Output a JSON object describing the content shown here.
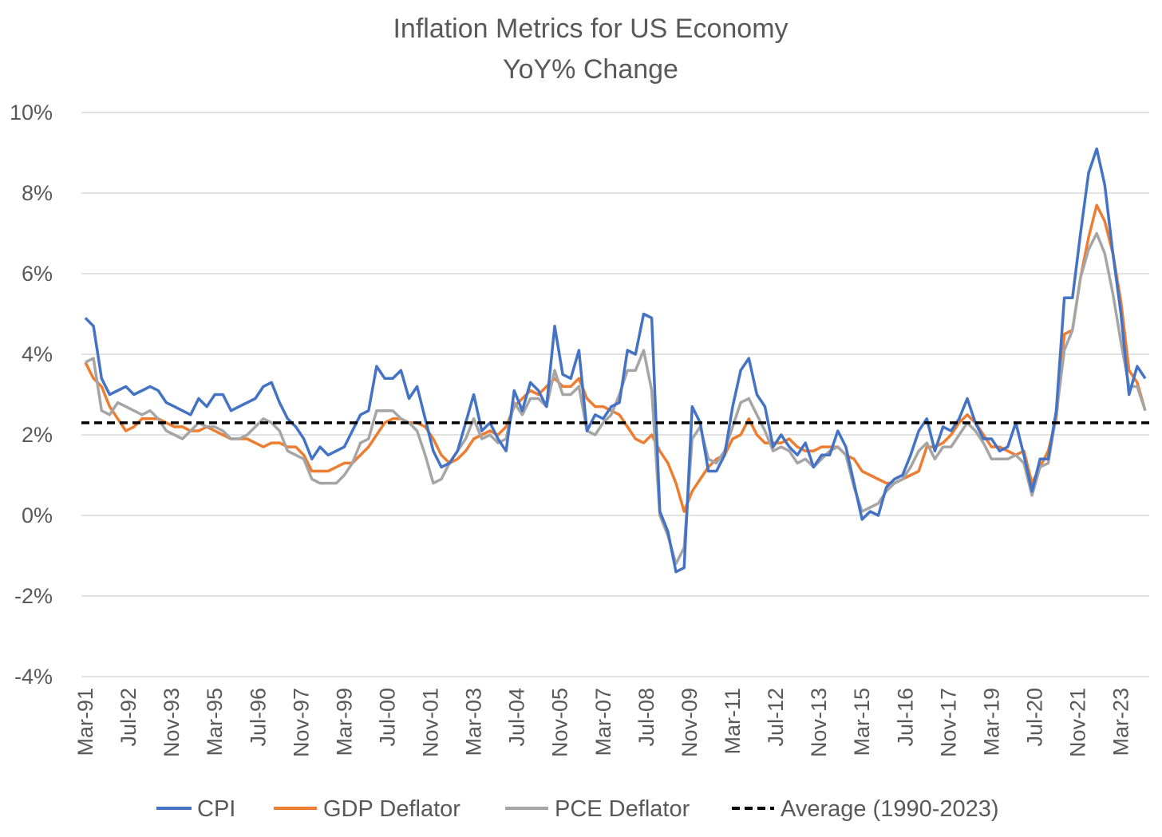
{
  "chart_data": {
    "type": "line",
    "title": "Inflation Metrics for US Economy",
    "subtitle": "YoY% Change",
    "xlabel": "",
    "ylabel": "",
    "ylim": [
      -4,
      10
    ],
    "y_ticks": [
      10,
      8,
      6,
      4,
      2,
      0,
      -2,
      -4
    ],
    "y_tick_labels": [
      "10%",
      "8%",
      "6%",
      "4%",
      "2%",
      "0%",
      "-2%",
      "-4%"
    ],
    "x_tick_labels": [
      "Mar-91",
      "Jul-92",
      "Nov-93",
      "Mar-95",
      "Jul-96",
      "Nov-97",
      "Mar-99",
      "Jul-00",
      "Nov-01",
      "Mar-03",
      "Jul-04",
      "Nov-05",
      "Mar-07",
      "Jul-08",
      "Nov-09",
      "Mar-11",
      "Jul-12",
      "Nov-13",
      "Mar-15",
      "Jul-16",
      "Nov-17",
      "Mar-19",
      "Jul-20",
      "Nov-21",
      "Mar-23"
    ],
    "grid": true,
    "legend": "bottom",
    "series": [
      {
        "name": "CPI",
        "color": "#4472C4",
        "x": [
          "1991-03",
          "1991-06",
          "1991-09",
          "1991-12",
          "1992-03",
          "1992-06",
          "1992-09",
          "1992-12",
          "1993-03",
          "1993-06",
          "1993-09",
          "1993-12",
          "1994-03",
          "1994-06",
          "1994-09",
          "1994-12",
          "1995-03",
          "1995-06",
          "1995-09",
          "1995-12",
          "1996-03",
          "1996-06",
          "1996-09",
          "1996-12",
          "1997-03",
          "1997-06",
          "1997-09",
          "1997-12",
          "1998-03",
          "1998-06",
          "1998-09",
          "1998-12",
          "1999-03",
          "1999-06",
          "1999-09",
          "1999-12",
          "2000-03",
          "2000-06",
          "2000-09",
          "2000-12",
          "2001-03",
          "2001-06",
          "2001-09",
          "2001-12",
          "2002-03",
          "2002-06",
          "2002-09",
          "2002-12",
          "2003-03",
          "2003-06",
          "2003-09",
          "2003-12",
          "2004-03",
          "2004-06",
          "2004-09",
          "2004-12",
          "2005-03",
          "2005-06",
          "2005-09",
          "2005-12",
          "2006-03",
          "2006-06",
          "2006-09",
          "2006-12",
          "2007-03",
          "2007-06",
          "2007-09",
          "2007-12",
          "2008-03",
          "2008-06",
          "2008-09",
          "2008-12",
          "2009-03",
          "2009-06",
          "2009-09",
          "2009-12",
          "2010-03",
          "2010-06",
          "2010-09",
          "2010-12",
          "2011-03",
          "2011-06",
          "2011-09",
          "2011-12",
          "2012-03",
          "2012-06",
          "2012-09",
          "2012-12",
          "2013-03",
          "2013-06",
          "2013-09",
          "2013-12",
          "2014-03",
          "2014-06",
          "2014-09",
          "2014-12",
          "2015-03",
          "2015-06",
          "2015-09",
          "2015-12",
          "2016-03",
          "2016-06",
          "2016-09",
          "2016-12",
          "2017-03",
          "2017-06",
          "2017-09",
          "2017-12",
          "2018-03",
          "2018-06",
          "2018-09",
          "2018-12",
          "2019-03",
          "2019-06",
          "2019-09",
          "2019-12",
          "2020-03",
          "2020-06",
          "2020-09",
          "2020-12",
          "2021-03",
          "2021-06",
          "2021-09",
          "2021-12",
          "2022-03",
          "2022-06",
          "2022-09",
          "2022-12",
          "2023-03",
          "2023-06",
          "2023-09",
          "2023-12"
        ],
        "values": [
          4.9,
          4.7,
          3.4,
          3.0,
          3.1,
          3.2,
          3.0,
          3.1,
          3.2,
          3.1,
          2.8,
          2.7,
          2.6,
          2.5,
          2.9,
          2.7,
          3.0,
          3.0,
          2.6,
          2.7,
          2.8,
          2.9,
          3.2,
          3.3,
          2.8,
          2.4,
          2.2,
          1.9,
          1.4,
          1.7,
          1.5,
          1.6,
          1.7,
          2.1,
          2.5,
          2.6,
          3.7,
          3.4,
          3.4,
          3.6,
          2.9,
          3.2,
          2.4,
          1.6,
          1.2,
          1.3,
          1.6,
          2.3,
          3.0,
          2.1,
          2.3,
          1.9,
          1.6,
          3.1,
          2.6,
          3.3,
          3.1,
          2.7,
          4.7,
          3.5,
          3.4,
          4.1,
          2.1,
          2.5,
          2.4,
          2.7,
          2.8,
          4.1,
          4.0,
          5.0,
          4.9,
          0.1,
          -0.4,
          -1.4,
          -1.3,
          2.7,
          2.3,
          1.1,
          1.1,
          1.5,
          2.7,
          3.6,
          3.9,
          3.0,
          2.7,
          1.7,
          2.0,
          1.7,
          1.5,
          1.8,
          1.2,
          1.5,
          1.5,
          2.1,
          1.7,
          0.8,
          -0.1,
          0.1,
          0.0,
          0.7,
          0.9,
          1.0,
          1.5,
          2.1,
          2.4,
          1.6,
          2.2,
          2.1,
          2.4,
          2.9,
          2.3,
          1.9,
          1.9,
          1.6,
          1.7,
          2.3,
          1.5,
          0.6,
          1.4,
          1.4,
          2.6,
          5.4,
          5.4,
          7.0,
          8.5,
          9.1,
          8.2,
          6.5,
          5.0,
          3.0,
          3.7,
          3.4
        ]
      },
      {
        "name": "GDP Deflator",
        "color": "#ED7D31",
        "x": [
          "1991-03",
          "1991-06",
          "1991-09",
          "1991-12",
          "1992-03",
          "1992-06",
          "1992-09",
          "1992-12",
          "1993-03",
          "1993-06",
          "1993-09",
          "1993-12",
          "1994-03",
          "1994-06",
          "1994-09",
          "1994-12",
          "1995-03",
          "1995-06",
          "1995-09",
          "1995-12",
          "1996-03",
          "1996-06",
          "1996-09",
          "1996-12",
          "1997-03",
          "1997-06",
          "1997-09",
          "1997-12",
          "1998-03",
          "1998-06",
          "1998-09",
          "1998-12",
          "1999-03",
          "1999-06",
          "1999-09",
          "1999-12",
          "2000-03",
          "2000-06",
          "2000-09",
          "2000-12",
          "2001-03",
          "2001-06",
          "2001-09",
          "2001-12",
          "2002-03",
          "2002-06",
          "2002-09",
          "2002-12",
          "2003-03",
          "2003-06",
          "2003-09",
          "2003-12",
          "2004-03",
          "2004-06",
          "2004-09",
          "2004-12",
          "2005-03",
          "2005-06",
          "2005-09",
          "2005-12",
          "2006-03",
          "2006-06",
          "2006-09",
          "2006-12",
          "2007-03",
          "2007-06",
          "2007-09",
          "2007-12",
          "2008-03",
          "2008-06",
          "2008-09",
          "2008-12",
          "2009-03",
          "2009-06",
          "2009-09",
          "2009-12",
          "2010-03",
          "2010-06",
          "2010-09",
          "2010-12",
          "2011-03",
          "2011-06",
          "2011-09",
          "2011-12",
          "2012-03",
          "2012-06",
          "2012-09",
          "2012-12",
          "2013-03",
          "2013-06",
          "2013-09",
          "2013-12",
          "2014-03",
          "2014-06",
          "2014-09",
          "2014-12",
          "2015-03",
          "2015-06",
          "2015-09",
          "2015-12",
          "2016-03",
          "2016-06",
          "2016-09",
          "2016-12",
          "2017-03",
          "2017-06",
          "2017-09",
          "2017-12",
          "2018-03",
          "2018-06",
          "2018-09",
          "2018-12",
          "2019-03",
          "2019-06",
          "2019-09",
          "2019-12",
          "2020-03",
          "2020-06",
          "2020-09",
          "2020-12",
          "2021-03",
          "2021-06",
          "2021-09",
          "2021-12",
          "2022-03",
          "2022-06",
          "2022-09",
          "2022-12",
          "2023-03",
          "2023-06",
          "2023-09",
          "2023-12"
        ],
        "values": [
          3.8,
          3.4,
          3.2,
          2.7,
          2.4,
          2.1,
          2.2,
          2.4,
          2.4,
          2.4,
          2.3,
          2.2,
          2.2,
          2.1,
          2.1,
          2.2,
          2.1,
          2.0,
          1.9,
          1.9,
          1.9,
          1.8,
          1.7,
          1.8,
          1.8,
          1.7,
          1.7,
          1.5,
          1.1,
          1.1,
          1.1,
          1.2,
          1.3,
          1.3,
          1.5,
          1.7,
          2.0,
          2.3,
          2.4,
          2.4,
          2.3,
          2.3,
          2.2,
          1.9,
          1.5,
          1.3,
          1.4,
          1.6,
          1.9,
          2.0,
          2.1,
          2.0,
          2.2,
          2.7,
          2.9,
          3.1,
          3.0,
          3.2,
          3.4,
          3.2,
          3.2,
          3.4,
          2.9,
          2.7,
          2.7,
          2.6,
          2.5,
          2.2,
          1.9,
          1.8,
          2.0,
          1.6,
          1.3,
          0.8,
          0.1,
          0.6,
          0.9,
          1.2,
          1.4,
          1.5,
          1.9,
          2.0,
          2.4,
          2.0,
          1.8,
          1.8,
          1.8,
          1.9,
          1.7,
          1.6,
          1.6,
          1.7,
          1.7,
          1.7,
          1.5,
          1.4,
          1.1,
          1.0,
          0.9,
          0.8,
          0.8,
          0.9,
          1.0,
          1.1,
          1.7,
          1.7,
          1.8,
          2.0,
          2.3,
          2.5,
          2.3,
          2.0,
          1.7,
          1.7,
          1.6,
          1.5,
          1.6,
          0.8,
          1.2,
          1.6,
          2.4,
          4.5,
          4.6,
          5.9,
          6.9,
          7.7,
          7.3,
          6.5,
          5.3,
          3.6,
          3.3,
          2.6
        ]
      },
      {
        "name": "PCE Deflator",
        "color": "#A5A5A5",
        "x": [
          "1991-03",
          "1991-06",
          "1991-09",
          "1991-12",
          "1992-03",
          "1992-06",
          "1992-09",
          "1992-12",
          "1993-03",
          "1993-06",
          "1993-09",
          "1993-12",
          "1994-03",
          "1994-06",
          "1994-09",
          "1994-12",
          "1995-03",
          "1995-06",
          "1995-09",
          "1995-12",
          "1996-03",
          "1996-06",
          "1996-09",
          "1996-12",
          "1997-03",
          "1997-06",
          "1997-09",
          "1997-12",
          "1998-03",
          "1998-06",
          "1998-09",
          "1998-12",
          "1999-03",
          "1999-06",
          "1999-09",
          "1999-12",
          "2000-03",
          "2000-06",
          "2000-09",
          "2000-12",
          "2001-03",
          "2001-06",
          "2001-09",
          "2001-12",
          "2002-03",
          "2002-06",
          "2002-09",
          "2002-12",
          "2003-03",
          "2003-06",
          "2003-09",
          "2003-12",
          "2004-03",
          "2004-06",
          "2004-09",
          "2004-12",
          "2005-03",
          "2005-06",
          "2005-09",
          "2005-12",
          "2006-03",
          "2006-06",
          "2006-09",
          "2006-12",
          "2007-03",
          "2007-06",
          "2007-09",
          "2007-12",
          "2008-03",
          "2008-06",
          "2008-09",
          "2008-12",
          "2009-03",
          "2009-06",
          "2009-09",
          "2009-12",
          "2010-03",
          "2010-06",
          "2010-09",
          "2010-12",
          "2011-03",
          "2011-06",
          "2011-09",
          "2011-12",
          "2012-03",
          "2012-06",
          "2012-09",
          "2012-12",
          "2013-03",
          "2013-06",
          "2013-09",
          "2013-12",
          "2014-03",
          "2014-06",
          "2014-09",
          "2014-12",
          "2015-03",
          "2015-06",
          "2015-09",
          "2015-12",
          "2016-03",
          "2016-06",
          "2016-09",
          "2016-12",
          "2017-03",
          "2017-06",
          "2017-09",
          "2017-12",
          "2018-03",
          "2018-06",
          "2018-09",
          "2018-12",
          "2019-03",
          "2019-06",
          "2019-09",
          "2019-12",
          "2020-03",
          "2020-06",
          "2020-09",
          "2020-12",
          "2021-03",
          "2021-06",
          "2021-09",
          "2021-12",
          "2022-03",
          "2022-06",
          "2022-09",
          "2022-12",
          "2023-03",
          "2023-06",
          "2023-09",
          "2023-12"
        ],
        "values": [
          3.8,
          3.9,
          2.6,
          2.5,
          2.8,
          2.7,
          2.6,
          2.5,
          2.6,
          2.4,
          2.1,
          2.0,
          1.9,
          2.1,
          2.3,
          2.2,
          2.2,
          2.1,
          1.9,
          1.9,
          2.0,
          2.2,
          2.4,
          2.3,
          2.1,
          1.6,
          1.5,
          1.4,
          0.9,
          0.8,
          0.8,
          0.8,
          1.0,
          1.3,
          1.8,
          1.9,
          2.6,
          2.6,
          2.6,
          2.4,
          2.3,
          2.1,
          1.5,
          0.8,
          0.9,
          1.3,
          1.6,
          1.9,
          2.4,
          1.9,
          2.0,
          1.8,
          1.9,
          2.8,
          2.5,
          2.9,
          2.9,
          2.7,
          3.6,
          3.0,
          3.0,
          3.2,
          2.1,
          2.0,
          2.3,
          2.5,
          3.0,
          3.6,
          3.6,
          4.1,
          3.1,
          0.0,
          -0.5,
          -1.2,
          -0.8,
          1.9,
          2.2,
          1.4,
          1.3,
          1.6,
          2.2,
          2.8,
          2.9,
          2.5,
          2.1,
          1.6,
          1.7,
          1.6,
          1.3,
          1.4,
          1.2,
          1.4,
          1.6,
          1.7,
          1.5,
          0.7,
          0.1,
          0.2,
          0.3,
          0.6,
          0.8,
          0.9,
          1.2,
          1.6,
          1.8,
          1.4,
          1.7,
          1.7,
          2.0,
          2.3,
          2.1,
          1.8,
          1.4,
          1.4,
          1.4,
          1.5,
          1.3,
          0.5,
          1.2,
          1.3,
          2.5,
          4.1,
          4.6,
          5.9,
          6.6,
          7.0,
          6.5,
          5.5,
          4.3,
          3.2,
          3.2,
          2.6
        ]
      },
      {
        "name": "Average (1990-2023)",
        "color": "#000000",
        "dashed": true,
        "value": 2.3
      }
    ]
  }
}
